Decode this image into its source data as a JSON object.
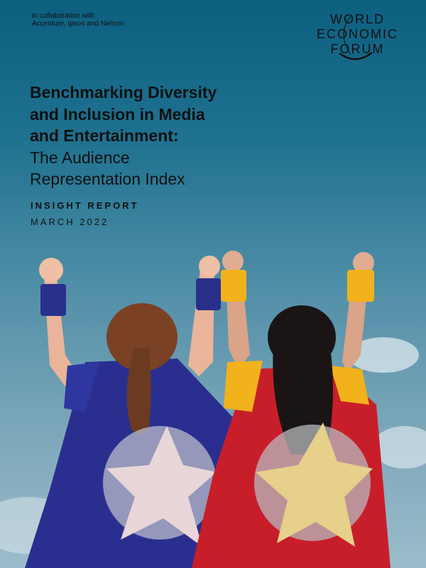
{
  "collaboration": {
    "line1": "In collaboration with",
    "line2": "Accenture, Ipsos and Nielsen"
  },
  "logo": {
    "line1": "WORLD",
    "line2": "ECONOMIC",
    "line3": "FORUM"
  },
  "title": {
    "bold_lines": [
      "Benchmarking Diversity",
      "and Inclusion in Media",
      "and Entertainment:"
    ],
    "regular_lines": [
      "The Audience",
      "Representation Index"
    ]
  },
  "report_type": "INSIGHT REPORT",
  "date": "MARCH 2022",
  "colors": {
    "sky_top": "#0d5f80",
    "sky_bottom": "#9bbccb",
    "blue_cape": "#2a2f8f",
    "red_cape": "#c81e2a",
    "wristband_yellow": "#f2b21c"
  }
}
